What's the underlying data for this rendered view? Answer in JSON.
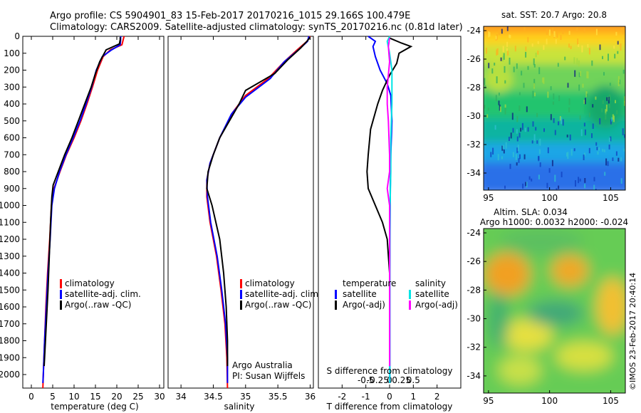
{
  "header": {
    "line1": "Argo profile: CS 5904901_83 15-Feb-2017 20170216_1015 29.166S 100.479E",
    "line2": "Climatology: CARS2009. Satellite-adjusted climatology: synTS_20170216.nc (0.81d later)"
  },
  "colors": {
    "climatology": "#ff0000",
    "satellite": "#0000ff",
    "argo": "#000000",
    "sat_salinity": "#00e5e5",
    "argo_salinity": "#ff00ff"
  },
  "chart_data": [
    {
      "type": "line",
      "title": "",
      "xlabel": "temperature (deg C)",
      "ylabel": "",
      "xlim": [
        -2,
        31
      ],
      "ylim": [
        2080,
        0
      ],
      "xticks": [
        0,
        5,
        10,
        15,
        20,
        25,
        30
      ],
      "yticks": [
        0,
        100,
        200,
        300,
        400,
        500,
        600,
        700,
        800,
        900,
        1000,
        1100,
        1200,
        1300,
        1400,
        1500,
        1600,
        1700,
        1800,
        1900,
        2000
      ],
      "legend": [
        "climatology",
        "satellite-adj. clim.",
        "Argo(..raw -QC)"
      ],
      "series": [
        {
          "name": "climatology",
          "color": "#ff0000",
          "points": [
            [
              21.7,
              0
            ],
            [
              21.5,
              20
            ],
            [
              21.2,
              50
            ],
            [
              18.5,
              80
            ],
            [
              16.8,
              120
            ],
            [
              15.5,
              200
            ],
            [
              14.3,
              300
            ],
            [
              13,
              400
            ],
            [
              11.6,
              500
            ],
            [
              10,
              600
            ],
            [
              8.2,
              700
            ],
            [
              6.7,
              800
            ],
            [
              5.3,
              900
            ],
            [
              4.7,
              1000
            ],
            [
              4.3,
              1200
            ],
            [
              3.8,
              1400
            ],
            [
              3.4,
              1600
            ],
            [
              3.1,
              1800
            ],
            [
              2.8,
              2000
            ],
            [
              2.7,
              2080
            ]
          ]
        },
        {
          "name": "satellite-adj. clim.",
          "color": "#0000ff",
          "points": [
            [
              20.9,
              0
            ],
            [
              20.9,
              20
            ],
            [
              20.8,
              50
            ],
            [
              18.8,
              80
            ],
            [
              16.6,
              120
            ],
            [
              15.2,
              200
            ],
            [
              14.1,
              300
            ],
            [
              12.8,
              400
            ],
            [
              11.4,
              500
            ],
            [
              9.8,
              600
            ],
            [
              8.1,
              700
            ],
            [
              6.6,
              800
            ],
            [
              5.4,
              900
            ],
            [
              4.8,
              1000
            ],
            [
              4.4,
              1200
            ],
            [
              3.9,
              1400
            ],
            [
              3.5,
              1600
            ],
            [
              3.1,
              1800
            ],
            [
              2.8,
              2000
            ],
            [
              2.7,
              2050
            ]
          ]
        },
        {
          "name": "Argo(..raw -QC)",
          "color": "#000000",
          "points": [
            [
              20.8,
              5
            ],
            [
              20.8,
              20
            ],
            [
              20.6,
              45
            ],
            [
              17.5,
              80
            ],
            [
              16,
              150
            ],
            [
              15,
              220
            ],
            [
              14,
              300
            ],
            [
              12.5,
              400
            ],
            [
              11,
              500
            ],
            [
              9.5,
              600
            ],
            [
              7.8,
              700
            ],
            [
              6.3,
              800
            ],
            [
              5.1,
              880
            ],
            [
              4.8,
              950
            ],
            [
              4.5,
              1100
            ],
            [
              4.2,
              1300
            ],
            [
              3.9,
              1500
            ],
            [
              3.5,
              1700
            ],
            [
              3.2,
              1850
            ],
            [
              3,
              1950
            ]
          ]
        }
      ]
    },
    {
      "type": "line",
      "title": "",
      "xlabel": "salinity",
      "ylabel": "",
      "xlim": [
        33.8,
        36.05
      ],
      "ylim": [
        2080,
        0
      ],
      "xticks": [
        34,
        34.5,
        35,
        35.5,
        36
      ],
      "legend": [
        "climatology",
        "satellite-adj. clim.",
        "Argo(..raw -QC)"
      ],
      "annotations": [
        "Argo Australia",
        "PI: Susan Wijffels"
      ],
      "series": [
        {
          "name": "climatology",
          "color": "#ff0000",
          "points": [
            [
              36,
              0
            ],
            [
              35.95,
              30
            ],
            [
              35.8,
              80
            ],
            [
              35.6,
              150
            ],
            [
              35.35,
              250
            ],
            [
              35,
              350
            ],
            [
              34.8,
              450
            ],
            [
              34.6,
              600
            ],
            [
              34.45,
              750
            ],
            [
              34.4,
              850
            ],
            [
              34.4,
              950
            ],
            [
              34.45,
              1100
            ],
            [
              34.55,
              1300
            ],
            [
              34.62,
              1500
            ],
            [
              34.68,
              1700
            ],
            [
              34.71,
              1900
            ],
            [
              34.72,
              2080
            ]
          ]
        },
        {
          "name": "satellite-adj. clim.",
          "color": "#0000ff",
          "points": [
            [
              35.98,
              0
            ],
            [
              35.96,
              30
            ],
            [
              35.82,
              80
            ],
            [
              35.6,
              150
            ],
            [
              35.38,
              250
            ],
            [
              35,
              360
            ],
            [
              34.78,
              460
            ],
            [
              34.6,
              600
            ],
            [
              34.45,
              750
            ],
            [
              34.4,
              850
            ],
            [
              34.41,
              950
            ],
            [
              34.46,
              1100
            ],
            [
              34.56,
              1300
            ],
            [
              34.63,
              1500
            ],
            [
              34.69,
              1700
            ],
            [
              34.72,
              1900
            ],
            [
              34.72,
              2050
            ]
          ]
        },
        {
          "name": "Argo(..raw -QC)",
          "color": "#000000",
          "points": [
            [
              36,
              5
            ],
            [
              35.95,
              30
            ],
            [
              35.85,
              70
            ],
            [
              35.65,
              140
            ],
            [
              35.45,
              220
            ],
            [
              35,
              320
            ],
            [
              34.9,
              400
            ],
            [
              34.75,
              500
            ],
            [
              34.6,
              600
            ],
            [
              34.5,
              700
            ],
            [
              34.42,
              800
            ],
            [
              34.4,
              900
            ],
            [
              34.48,
              1000
            ],
            [
              34.6,
              1200
            ],
            [
              34.66,
              1400
            ],
            [
              34.7,
              1600
            ],
            [
              34.72,
              1800
            ],
            [
              34.72,
              1950
            ]
          ]
        }
      ]
    },
    {
      "type": "line",
      "title": "",
      "xlabel": "T difference from climatology",
      "xlabel2": "S difference from climatology",
      "ylabel": "",
      "xlim": [
        -3,
        3
      ],
      "ylim": [
        2080,
        0
      ],
      "xticks": [
        -2,
        -1,
        0,
        1,
        2
      ],
      "xticks_s": [
        -0.5,
        -0.25,
        0,
        0.25,
        0.5
      ],
      "legend_groups": [
        {
          "title": "temperature",
          "items": [
            "satellite",
            "Argo(-adj)"
          ]
        },
        {
          "title": "salinity",
          "items": [
            "satellite",
            "Argo(-adj)"
          ]
        }
      ],
      "series": [
        {
          "name": "temperature satellite",
          "color": "#0000ff",
          "points": [
            [
              -0.9,
              0
            ],
            [
              -0.6,
              30
            ],
            [
              -0.7,
              60
            ],
            [
              -0.6,
              120
            ],
            [
              -0.4,
              200
            ],
            [
              -0.1,
              280
            ],
            [
              0.05,
              350
            ],
            [
              0.1,
              500
            ],
            [
              0.05,
              700
            ],
            [
              0.03,
              900
            ],
            [
              0.02,
              1100
            ],
            [
              0.01,
              1400
            ],
            [
              0.01,
              1700
            ],
            [
              0.01,
              2050
            ]
          ]
        },
        {
          "name": "temperature Argo(-adj)",
          "color": "#000000",
          "points": [
            [
              0,
              10
            ],
            [
              0.5,
              40
            ],
            [
              0.9,
              60
            ],
            [
              0.4,
              100
            ],
            [
              0.3,
              160
            ],
            [
              0,
              230
            ],
            [
              -0.3,
              320
            ],
            [
              -0.5,
              400
            ],
            [
              -0.8,
              550
            ],
            [
              -0.9,
              700
            ],
            [
              -0.95,
              800
            ],
            [
              -0.9,
              900
            ],
            [
              -0.6,
              1000
            ],
            [
              -0.3,
              1100
            ],
            [
              -0.1,
              1200
            ],
            [
              0,
              1400
            ],
            [
              0,
              1700
            ],
            [
              0,
              1950
            ]
          ]
        },
        {
          "name": "salinity satellite",
          "color": "#00e5e5",
          "points": [
            [
              0,
              0
            ],
            [
              -0.1,
              30
            ],
            [
              0,
              100
            ],
            [
              0.1,
              200
            ],
            [
              0.1,
              400
            ],
            [
              0.05,
              600
            ],
            [
              0.05,
              800
            ],
            [
              0.02,
              1000
            ],
            [
              0.01,
              1300
            ],
            [
              0.01,
              1700
            ],
            [
              0.01,
              2050
            ]
          ]
        },
        {
          "name": "salinity Argo(-adj)",
          "color": "#ff00ff",
          "points": [
            [
              0,
              10
            ],
            [
              -0.05,
              60
            ],
            [
              0,
              150
            ],
            [
              -0.1,
              300
            ],
            [
              -0.1,
              400
            ],
            [
              -0.05,
              500
            ],
            [
              0,
              700
            ],
            [
              0,
              800
            ],
            [
              -0.1,
              900
            ],
            [
              0,
              1000
            ],
            [
              0,
              1300
            ],
            [
              0,
              1600
            ],
            [
              0,
              1950
            ]
          ]
        }
      ]
    },
    {
      "type": "heatmap",
      "title": "sat. SST: 20.7 Argo: 20.8",
      "xticks": [
        95,
        100,
        105
      ],
      "yticks": [
        -24,
        -26,
        -28,
        -30,
        -32,
        -34
      ],
      "xlim": [
        94.6,
        106.2
      ],
      "ylim": [
        -35.2,
        -23.7
      ]
    },
    {
      "type": "heatmap",
      "title": "Altim. SLA: 0.034",
      "subtitle": "Argo h1000: 0.0032 h2000: -0.024",
      "xticks": [
        95,
        100,
        105
      ],
      "yticks": [
        -24,
        -26,
        -28,
        -30,
        -32,
        -34
      ],
      "xlim": [
        94.6,
        106.2
      ],
      "ylim": [
        -35.2,
        -23.7
      ]
    }
  ],
  "footer": {
    "credit": "©IMOS 23-Feb-2017 20:40:14"
  }
}
